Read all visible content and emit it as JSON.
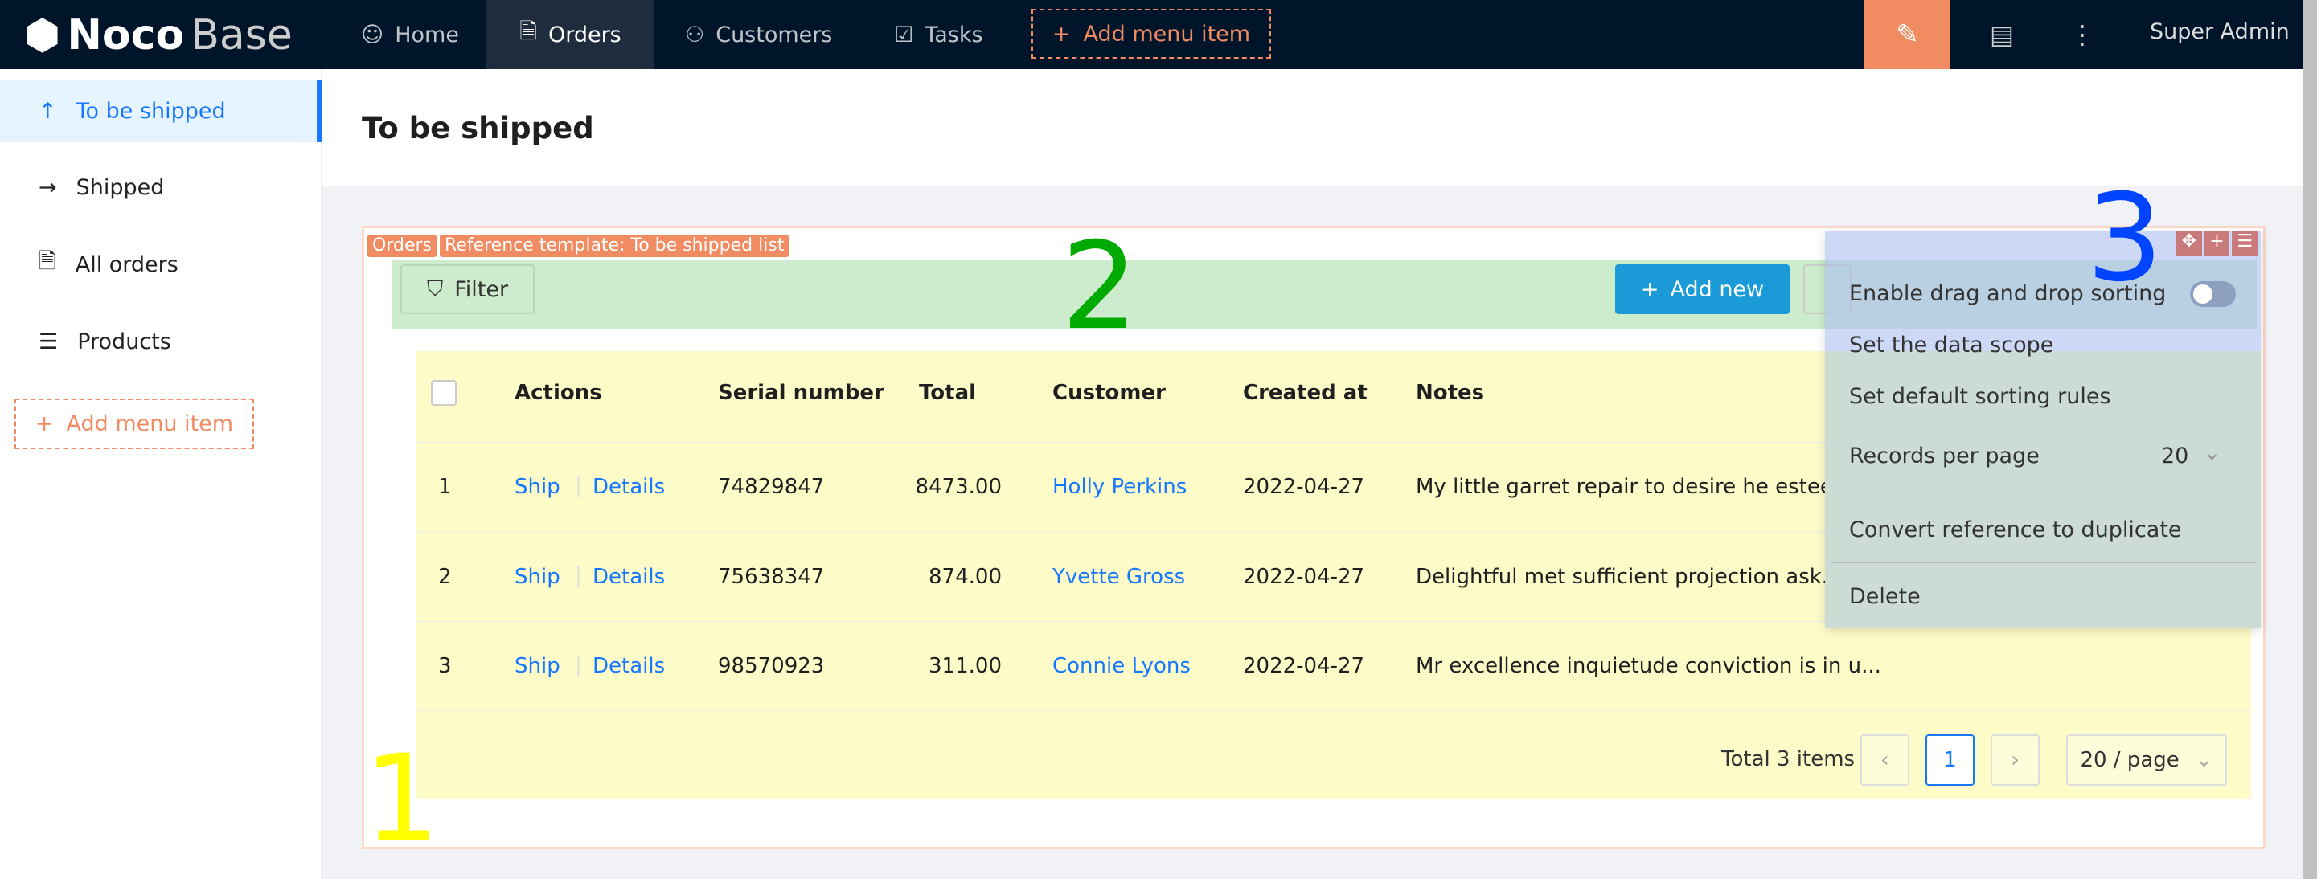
{
  "header": {
    "logo_bold": "Noco",
    "logo_light": "Base",
    "nav": [
      {
        "label": "Home",
        "icon": "smile-icon"
      },
      {
        "label": "Orders",
        "icon": "file-check-icon",
        "active": true
      },
      {
        "label": "Customers",
        "icon": "users-icon"
      },
      {
        "label": "Tasks",
        "icon": "checkbox-icon"
      }
    ],
    "add_menu_item": "Add menu item",
    "user": "Super Admin"
  },
  "sidebar": {
    "items": [
      {
        "label": "To be shipped",
        "icon": "arrow-up-icon",
        "active": true
      },
      {
        "label": "Shipped",
        "icon": "arrow-right-icon"
      },
      {
        "label": "All orders",
        "icon": "file-check-icon"
      },
      {
        "label": "Products",
        "icon": "list-icon"
      }
    ],
    "add_menu_item": "Add menu item"
  },
  "page": {
    "title": "To be shipped"
  },
  "block": {
    "tags": [
      "Orders",
      "Reference template: To be shipped list"
    ],
    "filter_label": "Filter",
    "add_new_label": "Add new",
    "columns": [
      "Actions",
      "Serial number",
      "Total",
      "Customer",
      "Created at",
      "Notes"
    ],
    "rows": [
      {
        "no": "1",
        "actions": [
          "Ship",
          "Details"
        ],
        "serial": "74829847",
        "total": "8473.00",
        "customer": "Holly Perkins",
        "created": "2022-04-27",
        "notes": "My little garret repair to desire he esteem..."
      },
      {
        "no": "2",
        "actions": [
          "Ship",
          "Details"
        ],
        "serial": "75638347",
        "total": "874.00",
        "customer": "Yvette Gross",
        "created": "2022-04-27",
        "notes": "Delightful met sufficient projection ask. De..."
      },
      {
        "no": "3",
        "actions": [
          "Ship",
          "Details"
        ],
        "serial": "98570923",
        "total": "311.00",
        "customer": "Connie Lyons",
        "created": "2022-04-27",
        "notes": "Mr excellence inquietude conviction is in u..."
      }
    ],
    "pagination": {
      "total": "Total 3 items",
      "current": "1",
      "page_size": "20 / page"
    }
  },
  "settings_menu": {
    "items": [
      "Enable drag and drop sorting",
      "Set the data scope",
      "Set default sorting rules",
      "Records per page",
      "Convert reference to duplicate",
      "Delete"
    ],
    "records_per_page": "20",
    "drag_sort_enabled": false
  },
  "annotations": [
    "1",
    "2",
    "3"
  ],
  "colors": {
    "header": "#001529",
    "accent": "#1677ff",
    "orange": "#f18b62",
    "add_new": "#1a9ad6"
  }
}
